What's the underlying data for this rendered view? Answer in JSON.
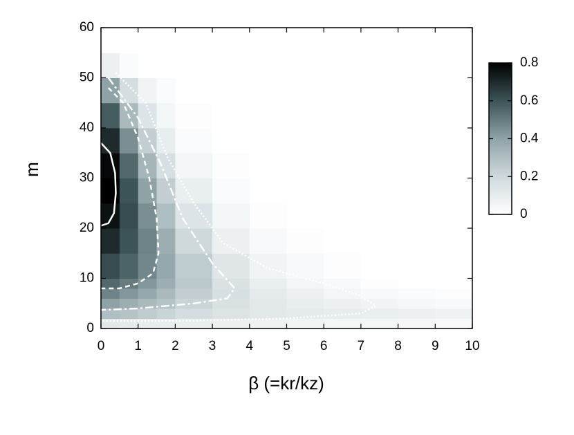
{
  "chart_data": {
    "type": "heatmap",
    "xlabel": "β (=kr/kz)",
    "ylabel": "m",
    "xlim": [
      0,
      10
    ],
    "ylim": [
      0,
      60
    ],
    "xticks": [
      0,
      1,
      2,
      3,
      4,
      5,
      6,
      7,
      8,
      9,
      10
    ],
    "yticks": [
      0,
      10,
      20,
      30,
      40,
      50,
      60
    ],
    "zlim": [
      0,
      0.8
    ],
    "zticks": [
      0,
      0.2,
      0.4,
      0.6,
      0.8
    ],
    "colormap": [
      "#ffffff",
      "#cfd9dc",
      "#8fa3a7",
      "#3d5457",
      "#000000"
    ],
    "xbins": [
      0,
      0.5,
      1,
      1.5,
      2,
      3,
      4,
      5,
      6,
      7,
      8,
      9,
      10
    ],
    "ybins": [
      0,
      2,
      4,
      6,
      8,
      10,
      15,
      20,
      25,
      30,
      35,
      40,
      45,
      50,
      55,
      60
    ],
    "z": [
      [
        0.12,
        0.11,
        0.1,
        0.1,
        0.09,
        0.08,
        0.07,
        0.06,
        0.05,
        0.05,
        0.04,
        0.03
      ],
      [
        0.3,
        0.28,
        0.25,
        0.22,
        0.18,
        0.15,
        0.12,
        0.11,
        0.1,
        0.09,
        0.08,
        0.07
      ],
      [
        0.4,
        0.36,
        0.32,
        0.28,
        0.22,
        0.16,
        0.12,
        0.1,
        0.08,
        0.06,
        0.04,
        0.03
      ],
      [
        0.48,
        0.43,
        0.38,
        0.32,
        0.24,
        0.17,
        0.11,
        0.08,
        0.05,
        0.03,
        0.02,
        0.01
      ],
      [
        0.55,
        0.5,
        0.43,
        0.36,
        0.26,
        0.16,
        0.09,
        0.05,
        0.03,
        0.01,
        0,
        0
      ],
      [
        0.62,
        0.56,
        0.47,
        0.38,
        0.25,
        0.13,
        0.06,
        0.03,
        0.01,
        0,
        0,
        0
      ],
      [
        0.7,
        0.6,
        0.48,
        0.36,
        0.2,
        0.08,
        0.03,
        0.01,
        0,
        0,
        0,
        0
      ],
      [
        0.76,
        0.62,
        0.45,
        0.3,
        0.14,
        0.05,
        0.01,
        0,
        0,
        0,
        0,
        0
      ],
      [
        0.8,
        0.6,
        0.4,
        0.24,
        0.09,
        0.02,
        0,
        0,
        0,
        0,
        0,
        0
      ],
      [
        0.78,
        0.55,
        0.33,
        0.17,
        0.05,
        0.01,
        0,
        0,
        0,
        0,
        0,
        0
      ],
      [
        0.7,
        0.45,
        0.24,
        0.1,
        0.02,
        0,
        0,
        0,
        0,
        0,
        0,
        0
      ],
      [
        0.58,
        0.32,
        0.14,
        0.05,
        0.01,
        0,
        0,
        0,
        0,
        0,
        0,
        0
      ],
      [
        0.4,
        0.18,
        0.06,
        0.02,
        0,
        0,
        0,
        0,
        0,
        0,
        0,
        0
      ],
      [
        0.08,
        0.02,
        0,
        0,
        0,
        0,
        0,
        0,
        0,
        0,
        0,
        0
      ],
      [
        0,
        0,
        0,
        0,
        0,
        0,
        0,
        0,
        0,
        0,
        0,
        0
      ]
    ],
    "contours": [
      {
        "style": "solid",
        "x": [
          0,
          0.25,
          0.38,
          0.4,
          0.35,
          0.2,
          0
        ],
        "y": [
          37,
          35,
          31,
          27,
          23,
          21,
          20.5
        ]
      },
      {
        "style": "dashed",
        "x": [
          0.2,
          0.6,
          1.0,
          1.3,
          1.5,
          1.55,
          1.4,
          1.0,
          0.5,
          0
        ],
        "y": [
          48,
          45,
          38,
          30,
          22,
          15,
          11,
          9,
          8,
          8
        ]
      },
      {
        "style": "dashdot",
        "x": [
          0.2,
          1.0,
          1.6,
          2.2,
          3.0,
          3.6,
          3.4,
          2.5,
          1.0,
          0
        ],
        "y": [
          50,
          42,
          33,
          22,
          13,
          8,
          6,
          5,
          4,
          3.7
        ]
      },
      {
        "style": "dotted",
        "x": [
          0.4,
          1.2,
          1.8,
          2.5,
          3.3,
          4.5,
          6.0,
          7.0,
          7.4,
          7.0,
          5.0,
          2.0,
          0
        ],
        "y": [
          51,
          45,
          34,
          25,
          17,
          12,
          9,
          6.5,
          4.5,
          3,
          2,
          1.5,
          1.5
        ]
      }
    ]
  }
}
